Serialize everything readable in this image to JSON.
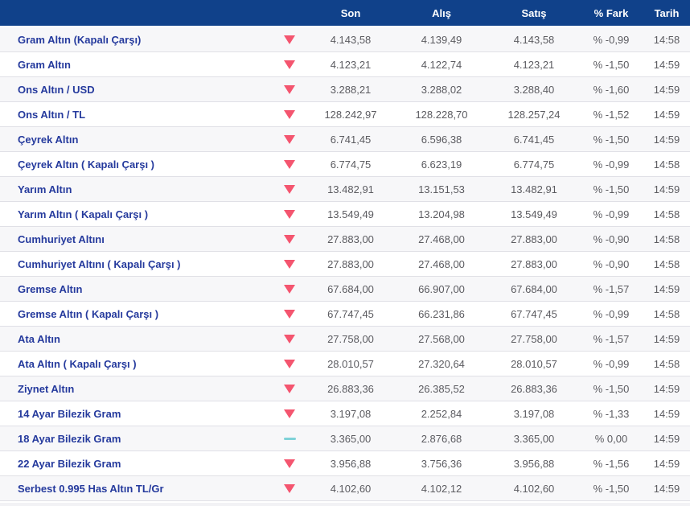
{
  "colors": {
    "header-bg": "#10418a",
    "header-text": "#ffffff",
    "label-blue": "#253a9d",
    "value-gray": "#5b5b60",
    "arrow-red": "#f4556f",
    "flat-teal": "#7fd2d8",
    "row-alt-bg": "#f7f7f9",
    "row-bg": "#ffffff",
    "separator": "#e0e0e6",
    "footer-strip": "#f2f2f5"
  },
  "table": {
    "columns": [
      {
        "key": "son",
        "label": "Son"
      },
      {
        "key": "alis",
        "label": "Alış"
      },
      {
        "key": "satis",
        "label": "Satış"
      },
      {
        "key": "fark",
        "label": "% Fark"
      },
      {
        "key": "tarih",
        "label": "Tarih"
      }
    ],
    "rows": [
      {
        "name": "Gram Altın (Kapalı Çarşı)",
        "trend": "down",
        "son": "4.143,58",
        "alis": "4.139,49",
        "satis": "4.143,58",
        "fark": "% -0,99",
        "tarih": "14:58"
      },
      {
        "name": "Gram Altın",
        "trend": "down",
        "son": "4.123,21",
        "alis": "4.122,74",
        "satis": "4.123,21",
        "fark": "% -1,50",
        "tarih": "14:59"
      },
      {
        "name": "Ons Altın / USD",
        "trend": "down",
        "son": "3.288,21",
        "alis": "3.288,02",
        "satis": "3.288,40",
        "fark": "% -1,60",
        "tarih": "14:59"
      },
      {
        "name": "Ons Altın / TL",
        "trend": "down",
        "son": "128.242,97",
        "alis": "128.228,70",
        "satis": "128.257,24",
        "fark": "% -1,52",
        "tarih": "14:59"
      },
      {
        "name": "Çeyrek Altın",
        "trend": "down",
        "son": "6.741,45",
        "alis": "6.596,38",
        "satis": "6.741,45",
        "fark": "% -1,50",
        "tarih": "14:59"
      },
      {
        "name": "Çeyrek Altın ( Kapalı Çarşı )",
        "trend": "down",
        "son": "6.774,75",
        "alis": "6.623,19",
        "satis": "6.774,75",
        "fark": "% -0,99",
        "tarih": "14:58"
      },
      {
        "name": "Yarım Altın",
        "trend": "down",
        "son": "13.482,91",
        "alis": "13.151,53",
        "satis": "13.482,91",
        "fark": "% -1,50",
        "tarih": "14:59"
      },
      {
        "name": "Yarım Altın ( Kapalı Çarşı )",
        "trend": "down",
        "son": "13.549,49",
        "alis": "13.204,98",
        "satis": "13.549,49",
        "fark": "% -0,99",
        "tarih": "14:58"
      },
      {
        "name": "Cumhuriyet Altını",
        "trend": "down",
        "son": "27.883,00",
        "alis": "27.468,00",
        "satis": "27.883,00",
        "fark": "% -0,90",
        "tarih": "14:58"
      },
      {
        "name": "Cumhuriyet Altını ( Kapalı Çarşı )",
        "trend": "down",
        "son": "27.883,00",
        "alis": "27.468,00",
        "satis": "27.883,00",
        "fark": "% -0,90",
        "tarih": "14:58"
      },
      {
        "name": "Gremse Altın",
        "trend": "down",
        "son": "67.684,00",
        "alis": "66.907,00",
        "satis": "67.684,00",
        "fark": "% -1,57",
        "tarih": "14:59"
      },
      {
        "name": "Gremse Altın ( Kapalı Çarşı )",
        "trend": "down",
        "son": "67.747,45",
        "alis": "66.231,86",
        "satis": "67.747,45",
        "fark": "% -0,99",
        "tarih": "14:58"
      },
      {
        "name": "Ata Altın",
        "trend": "down",
        "son": "27.758,00",
        "alis": "27.568,00",
        "satis": "27.758,00",
        "fark": "% -1,57",
        "tarih": "14:59"
      },
      {
        "name": "Ata Altın ( Kapalı Çarşı )",
        "trend": "down",
        "son": "28.010,57",
        "alis": "27.320,64",
        "satis": "28.010,57",
        "fark": "% -0,99",
        "tarih": "14:58"
      },
      {
        "name": "Ziynet Altın",
        "trend": "down",
        "son": "26.883,36",
        "alis": "26.385,52",
        "satis": "26.883,36",
        "fark": "% -1,50",
        "tarih": "14:59"
      },
      {
        "name": "14 Ayar Bilezik Gram",
        "trend": "down",
        "son": "3.197,08",
        "alis": "2.252,84",
        "satis": "3.197,08",
        "fark": "% -1,33",
        "tarih": "14:59"
      },
      {
        "name": "18 Ayar Bilezik Gram",
        "trend": "flat",
        "son": "3.365,00",
        "alis": "2.876,68",
        "satis": "3.365,00",
        "fark": "% 0,00",
        "tarih": "14:59"
      },
      {
        "name": "22 Ayar Bilezik Gram",
        "trend": "down",
        "son": "3.956,88",
        "alis": "3.756,36",
        "satis": "3.956,88",
        "fark": "% -1,56",
        "tarih": "14:59"
      },
      {
        "name": "Serbest 0.995 Has Altın TL/Gr",
        "trend": "down",
        "son": "4.102,60",
        "alis": "4.102,12",
        "satis": "4.102,60",
        "fark": "% -1,50",
        "tarih": "14:59"
      }
    ]
  }
}
